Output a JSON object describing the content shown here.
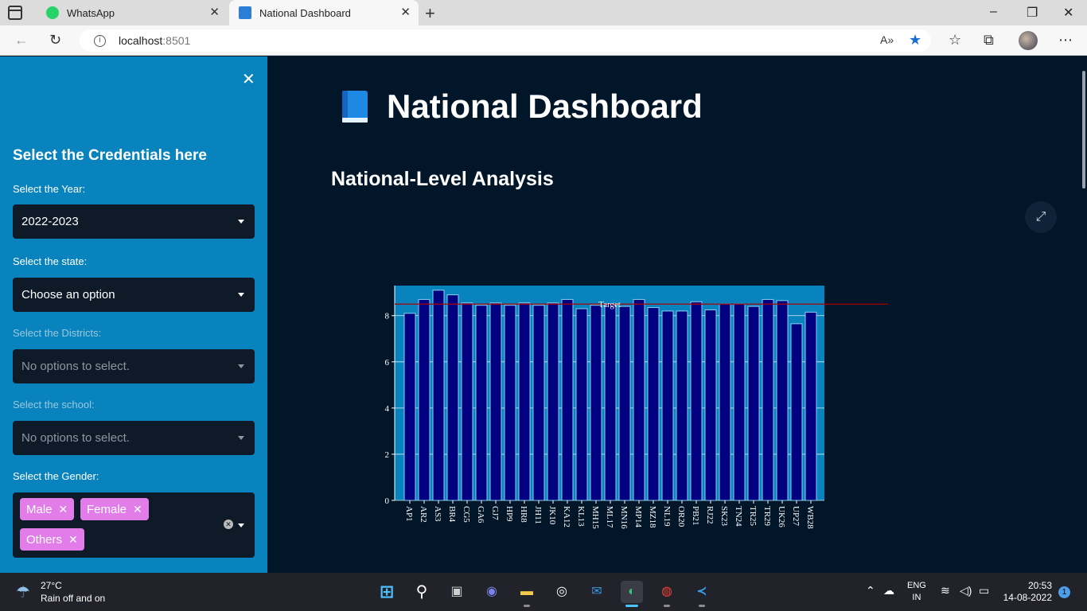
{
  "browser": {
    "tabs": [
      {
        "label": "WhatsApp",
        "active": false
      },
      {
        "label": "National Dashboard",
        "active": true
      }
    ],
    "new_tab": "+",
    "window_controls": [
      "–",
      "❐",
      "✕"
    ],
    "url_host": "localhost",
    "url_port": ":8501"
  },
  "sidebar": {
    "title": "Select the Credentials here",
    "year_label": "Select the Year:",
    "year_value": "2022-2023",
    "state_label": "Select the state:",
    "state_value": "Choose an option",
    "districts_label": "Select the Districts:",
    "districts_value": "No options to select.",
    "school_label": "Select the school:",
    "school_value": "No options to select.",
    "gender_label": "Select the Gender:",
    "gender_chips": [
      "Male",
      "Female",
      "Others"
    ]
  },
  "main": {
    "title": "National Dashboard",
    "section": "National-Level Analysis"
  },
  "chart_data": {
    "type": "bar",
    "categories": [
      "AP1",
      "AR2",
      "AS3",
      "BR4",
      "CG5",
      "GA6",
      "GJ7",
      "HP9",
      "HR8",
      "JH11",
      "JK10",
      "KA12",
      "KL13",
      "MH15",
      "ML17",
      "MN16",
      "MP14",
      "MZ18",
      "NL19",
      "OR20",
      "PB21",
      "RJ22",
      "SK23",
      "TN24",
      "TR25",
      "TR29",
      "UK26",
      "UP27",
      "WB28"
    ],
    "values": [
      8.1,
      8.7,
      9.1,
      8.9,
      8.55,
      8.45,
      8.55,
      8.45,
      8.55,
      8.45,
      8.55,
      8.7,
      8.3,
      8.45,
      8.5,
      8.4,
      8.7,
      8.35,
      8.2,
      8.2,
      8.6,
      8.25,
      8.5,
      8.5,
      8.4,
      8.7,
      8.65,
      7.65,
      8.15
    ],
    "target": 8.5,
    "target_label": "Target",
    "yticks": [
      0,
      2,
      4,
      6,
      8
    ],
    "ylim": [
      0,
      9.3
    ],
    "colors": {
      "bar": "#000080",
      "bar_edge": "#8ad2f0",
      "plot_bg": "#0883bd",
      "target": "#aa0000",
      "text": "#ffffff"
    }
  },
  "taskbar": {
    "temperature": "27°C",
    "weather": "Rain off and on",
    "lang_top": "ENG",
    "lang_bottom": "IN",
    "time": "20:53",
    "date": "14-08-2022",
    "notifications": "1"
  }
}
